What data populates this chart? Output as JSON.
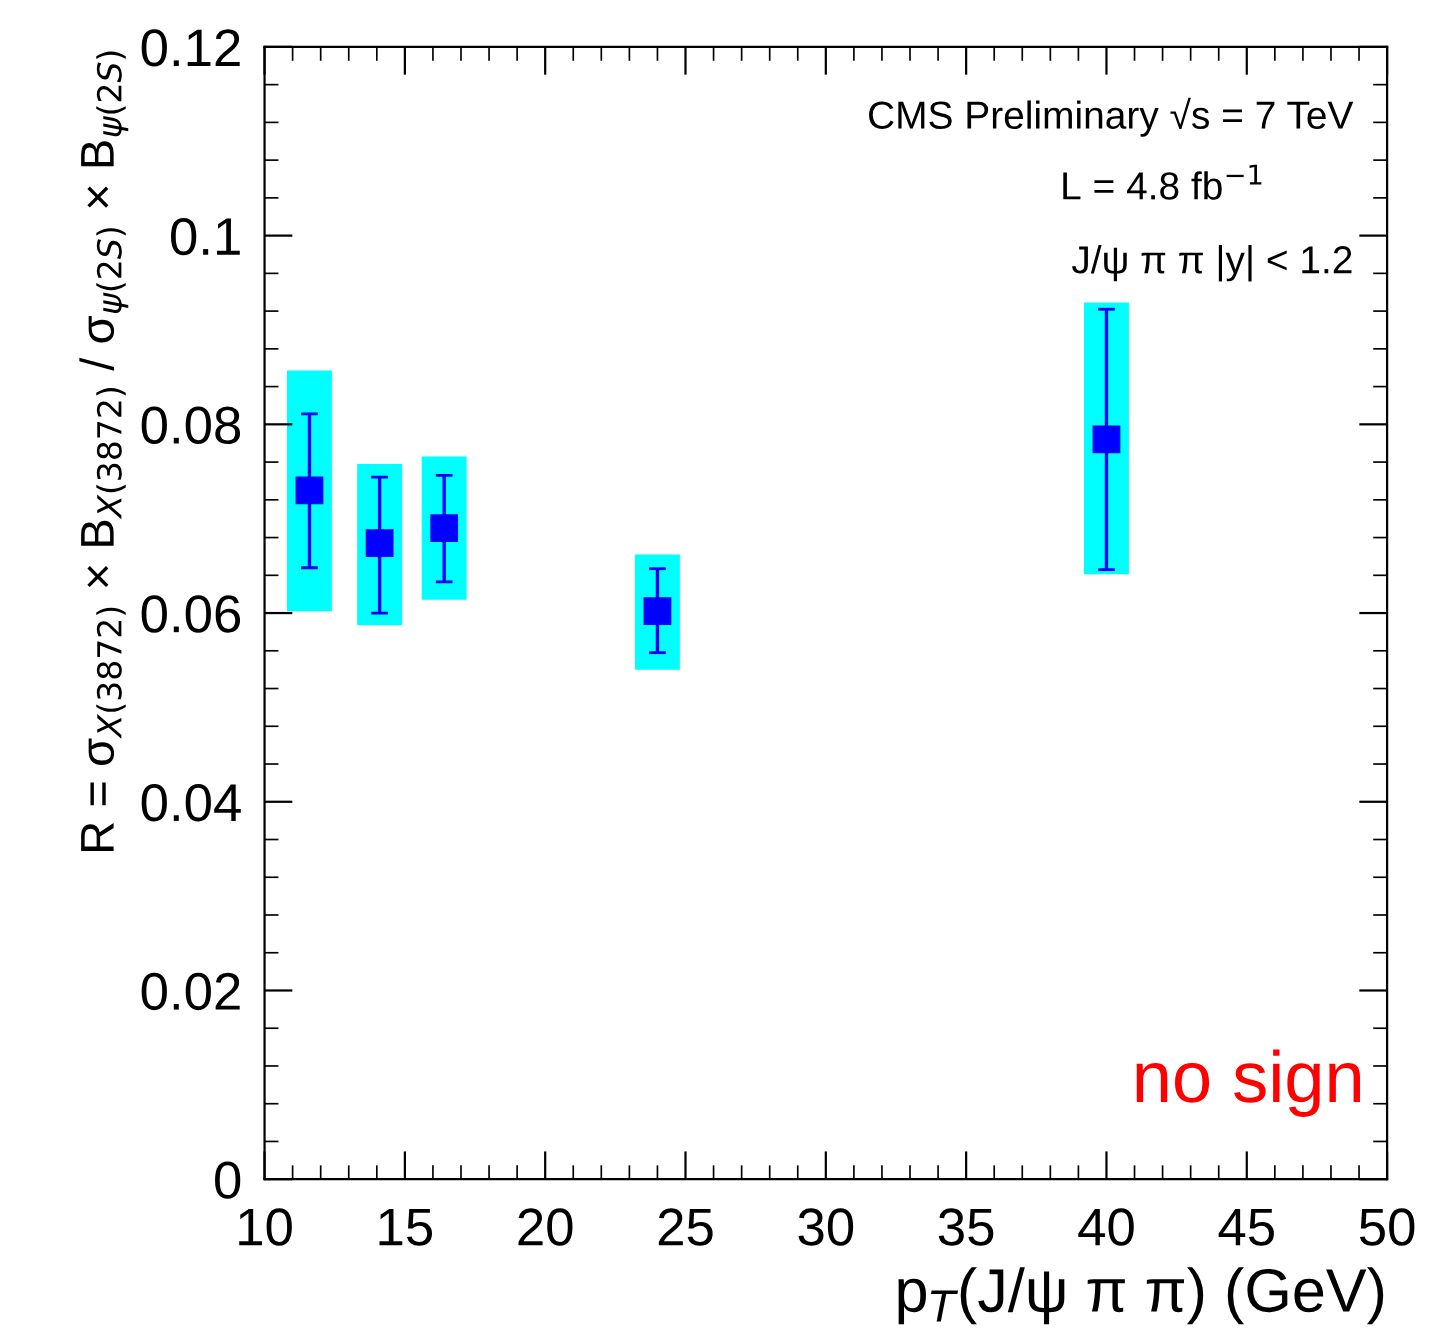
{
  "chart_data": {
    "type": "scatter",
    "xlabel": "p$_{T}$(J/ψ π π) (GeV)",
    "ylabel": "R = σ$_{X(3872)}$ × B$_{X(3872)}$ / σ$_{ψ(2S)}$ × B$_{ψ(2S)}$",
    "xlim": [
      10,
      50
    ],
    "xticks": [
      10,
      15,
      20,
      25,
      30,
      35,
      40,
      45,
      50
    ],
    "ylim": [
      0,
      0.12
    ],
    "yticks": [
      0,
      0.02,
      0.04,
      0.06,
      0.08,
      0.1,
      0.12
    ],
    "series": [
      {
        "type": "bar",
        "color": "#00ffff",
        "x": [
          11.6,
          14.1,
          16.4,
          24.0,
          40.0
        ],
        "base": [
          0.0602,
          0.0587,
          0.0614,
          0.054,
          0.0641
        ],
        "values": [
          0.0255,
          0.0171,
          0.0152,
          0.0122,
          0.0288
        ]
      },
      {
        "color": "#0000ff",
        "x": [
          11.6,
          14.1,
          16.4,
          24.0,
          40.0
        ],
        "values": [
          0.073,
          0.0674,
          0.069,
          0.0602,
          0.0784
        ],
        "errors": [
          [
            0.0648,
            0.0811
          ],
          [
            0.06,
            0.0744
          ],
          [
            0.0633,
            0.0746
          ],
          [
            0.0558,
            0.0647
          ],
          [
            0.0646,
            0.0922
          ]
        ]
      }
    ],
    "marker": "square",
    "grid": false,
    "annotations": [
      "CMS Preliminary √s = 7 TeV",
      "L = 4.8 fb$^{−1}$",
      "J/ψ π π |y| < 1.2",
      "no sign"
    ]
  }
}
